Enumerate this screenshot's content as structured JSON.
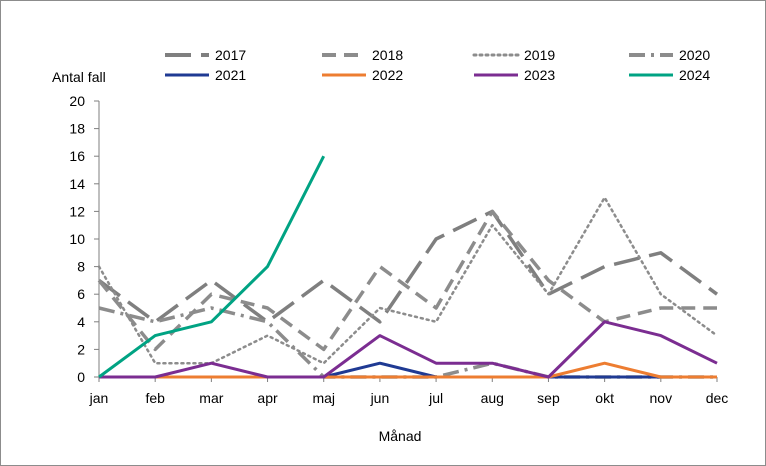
{
  "chart_data": {
    "type": "line",
    "title": "",
    "xlabel": "Månad",
    "ylabel": "Antal fall",
    "ylim": [
      0,
      20
    ],
    "yticks": [
      "0",
      "2",
      "4",
      "6",
      "8",
      "10",
      "12",
      "14",
      "16",
      "18",
      "20"
    ],
    "categories": [
      "jan",
      "feb",
      "mar",
      "apr",
      "maj",
      "jun",
      "jul",
      "aug",
      "sep",
      "okt",
      "nov",
      "dec"
    ],
    "grid": false,
    "legend_position": "top",
    "series": [
      {
        "name": "2017",
        "color": "#7f7f7f",
        "dash": "longdash",
        "values": [
          7,
          4,
          7,
          4,
          7,
          4,
          10,
          12,
          6,
          8,
          9,
          6
        ]
      },
      {
        "name": "2018",
        "color": "#8c8c8c",
        "dash": "dash",
        "values": [
          7,
          2,
          6,
          5,
          2,
          8,
          5,
          12,
          7,
          4,
          5,
          5
        ]
      },
      {
        "name": "2019",
        "color": "#8c8c8c",
        "dash": "dot",
        "values": [
          8,
          1,
          1,
          3,
          1,
          5,
          4,
          11,
          6,
          13,
          6,
          3
        ]
      },
      {
        "name": "2020",
        "color": "#8c8c8c",
        "dash": "dashdot",
        "values": [
          5,
          4,
          5,
          4,
          0,
          0,
          0,
          1,
          0,
          0,
          0,
          0
        ]
      },
      {
        "name": "2021",
        "color": "#1f3a93",
        "dash": "solid",
        "values": [
          0,
          0,
          0,
          0,
          0,
          1,
          0,
          0,
          0,
          0,
          0,
          0
        ]
      },
      {
        "name": "2022",
        "color": "#ed7d31",
        "dash": "solid",
        "values": [
          0,
          0,
          0,
          0,
          0,
          0,
          0,
          0,
          0,
          1,
          0,
          0
        ]
      },
      {
        "name": "2023",
        "color": "#7b2d91",
        "dash": "solid",
        "values": [
          0,
          0,
          1,
          0,
          0,
          3,
          1,
          1,
          0,
          4,
          3,
          1
        ]
      },
      {
        "name": "2024",
        "color": "#00a383",
        "dash": "solid",
        "values": [
          0,
          3,
          4,
          8,
          16,
          null,
          null,
          null,
          null,
          null,
          null,
          null
        ]
      }
    ]
  }
}
